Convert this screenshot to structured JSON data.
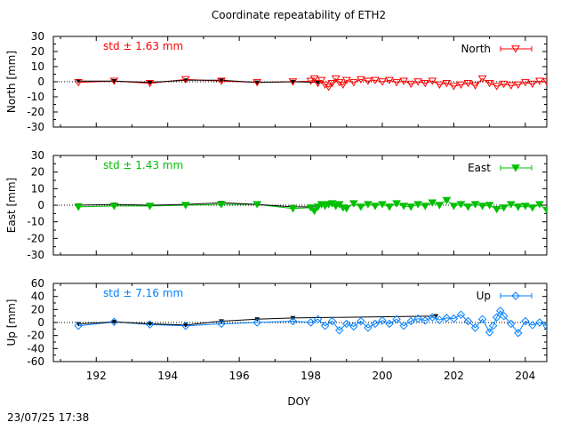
{
  "title": "Coordinate repeatability of ETH2",
  "timestamp": "23/07/25 17:38",
  "xlabel": "DOY",
  "x_ticks": [
    "192",
    "194",
    "196",
    "198",
    "200",
    "202",
    "204"
  ],
  "colors": {
    "north": "#ff0000",
    "east": "#00c000",
    "up": "#0080ff",
    "daily": "#000000",
    "axis": "#000000"
  },
  "chart_data": [
    {
      "type": "line",
      "component": "north",
      "ylabel": "North [mm]",
      "ylim": [
        -30,
        30
      ],
      "xlim": [
        190.8,
        204.6
      ],
      "y_ticks": [
        "30",
        "20",
        "10",
        "0",
        "-10",
        "-20",
        "-30"
      ],
      "std_label": "std ± 1.63 mm",
      "legend": "North",
      "legend_position": "top-right",
      "marker": "open-triangle-down",
      "grid": false,
      "series": [
        {
          "name": "North",
          "x": [
            191.5,
            192.5,
            193.5,
            194.5,
            195.5,
            196.5,
            197.5,
            198.0,
            198.1,
            198.2,
            198.3,
            198.4,
            198.5,
            198.6,
            198.7,
            198.8,
            198.9,
            199.0,
            199.2,
            199.4,
            199.6,
            199.8,
            200.0,
            200.2,
            200.4,
            200.6,
            200.8,
            201.0,
            201.2,
            201.4,
            201.6,
            201.8,
            202.0,
            202.2,
            202.4,
            202.6,
            202.8,
            203.0,
            203.2,
            203.4,
            203.6,
            203.8,
            204.0,
            204.2,
            204.4,
            204.6
          ],
          "y": [
            -0.5,
            0.5,
            -1.0,
            1.5,
            0.5,
            -0.5,
            0.0,
            0.5,
            2.0,
            -1.0,
            1.0,
            -2.0,
            -3.5,
            -1.0,
            2.0,
            -0.5,
            -2.0,
            1.0,
            -0.5,
            1.5,
            0.5,
            1.0,
            0.0,
            1.0,
            -0.5,
            0.5,
            -1.5,
            0.0,
            -1.0,
            0.5,
            -2.0,
            -1.0,
            -3.0,
            -2.0,
            -1.0,
            -2.5,
            2.0,
            -1.0,
            -3.0,
            -1.5,
            -2.5,
            -2.0,
            -0.5,
            -1.5,
            0.5,
            0.0
          ]
        },
        {
          "name": "",
          "x": [
            191.5,
            192.5,
            193.5,
            194.5,
            195.5,
            196.5,
            197.5,
            198.2
          ],
          "y": [
            0.5,
            0.5,
            -0.5,
            1.0,
            1.0,
            -0.5,
            0.0,
            -0.5
          ]
        }
      ]
    },
    {
      "type": "line",
      "component": "east",
      "ylabel": "East [mm]",
      "ylim": [
        -30,
        30
      ],
      "xlim": [
        190.8,
        204.6
      ],
      "y_ticks": [
        "30",
        "20",
        "10",
        "0",
        "-10",
        "-20",
        "-30"
      ],
      "std_label": "std ± 1.43 mm",
      "legend": "East",
      "legend_position": "top-right",
      "marker": "filled-triangle-down",
      "grid": false,
      "series": [
        {
          "name": "East",
          "x": [
            191.5,
            192.5,
            193.5,
            194.5,
            195.5,
            196.5,
            197.5,
            198.0,
            198.1,
            198.2,
            198.3,
            198.4,
            198.5,
            198.6,
            198.7,
            198.8,
            198.9,
            199.0,
            199.2,
            199.4,
            199.6,
            199.8,
            200.0,
            200.2,
            200.4,
            200.6,
            200.8,
            201.0,
            201.2,
            201.4,
            201.6,
            201.8,
            202.0,
            202.2,
            202.4,
            202.6,
            202.8,
            203.0,
            203.2,
            203.4,
            203.6,
            203.8,
            204.0,
            204.2,
            204.4,
            204.6
          ],
          "y": [
            -1.0,
            -0.5,
            -0.5,
            0.0,
            0.5,
            0.5,
            -2.0,
            -1.5,
            -3.5,
            -1.0,
            0.5,
            -0.5,
            0.5,
            1.0,
            -0.5,
            0.5,
            -1.5,
            -2.0,
            1.0,
            -1.0,
            0.5,
            -0.5,
            0.5,
            -1.0,
            1.0,
            -0.5,
            -1.0,
            0.5,
            -0.5,
            1.5,
            0.0,
            3.0,
            -0.5,
            0.5,
            -1.0,
            0.5,
            -0.5,
            0.0,
            -2.5,
            -1.5,
            0.5,
            -1.0,
            -0.5,
            -1.5,
            0.5,
            -3.0
          ]
        },
        {
          "name": "",
          "x": [
            191.5,
            192.5,
            193.5,
            194.5,
            195.5,
            196.5,
            197.5,
            198.2
          ],
          "y": [
            0.0,
            0.5,
            0.0,
            0.5,
            1.5,
            0.5,
            -1.0,
            -1.0
          ]
        }
      ]
    },
    {
      "type": "line",
      "component": "up",
      "ylabel": "Up [mm]",
      "ylim": [
        -60,
        60
      ],
      "xlim": [
        190.8,
        204.6
      ],
      "y_ticks": [
        "60",
        "40",
        "20",
        "0",
        "-20",
        "-40",
        "-60"
      ],
      "std_label": "std ± 7.16 mm",
      "legend": "Up",
      "legend_position": "top-right",
      "marker": "open-diamond",
      "grid": false,
      "series": [
        {
          "name": "Up",
          "x": [
            191.5,
            192.5,
            193.5,
            194.5,
            195.5,
            196.5,
            197.5,
            198.0,
            198.2,
            198.4,
            198.6,
            198.8,
            199.0,
            199.2,
            199.4,
            199.6,
            199.8,
            200.0,
            200.2,
            200.4,
            200.6,
            200.8,
            201.0,
            201.2,
            201.4,
            201.6,
            201.8,
            202.0,
            202.2,
            202.4,
            202.6,
            202.8,
            203.0,
            203.1,
            203.2,
            203.3,
            203.4,
            203.6,
            203.8,
            204.0,
            204.2,
            204.4,
            204.6
          ],
          "y": [
            -5.0,
            1.0,
            -3.0,
            -5.0,
            -2.0,
            0.0,
            2.0,
            0.0,
            5.0,
            -5.0,
            2.0,
            -12.0,
            -2.0,
            -6.0,
            2.0,
            -8.0,
            -2.0,
            3.0,
            -2.0,
            5.0,
            -5.0,
            2.0,
            6.0,
            3.0,
            8.0,
            4.0,
            7.0,
            6.0,
            12.0,
            2.0,
            -8.0,
            5.0,
            -15.0,
            -5.0,
            8.0,
            18.0,
            10.0,
            -2.0,
            -16.0,
            2.0,
            -4.0,
            0.0,
            -5.0
          ]
        },
        {
          "name": "",
          "x": [
            191.5,
            192.5,
            193.5,
            194.5,
            195.5,
            196.5,
            197.5,
            201.5
          ],
          "y": [
            -2.0,
            1.0,
            -2.0,
            -4.0,
            2.0,
            5.0,
            7.0,
            10.0
          ]
        }
      ]
    }
  ]
}
